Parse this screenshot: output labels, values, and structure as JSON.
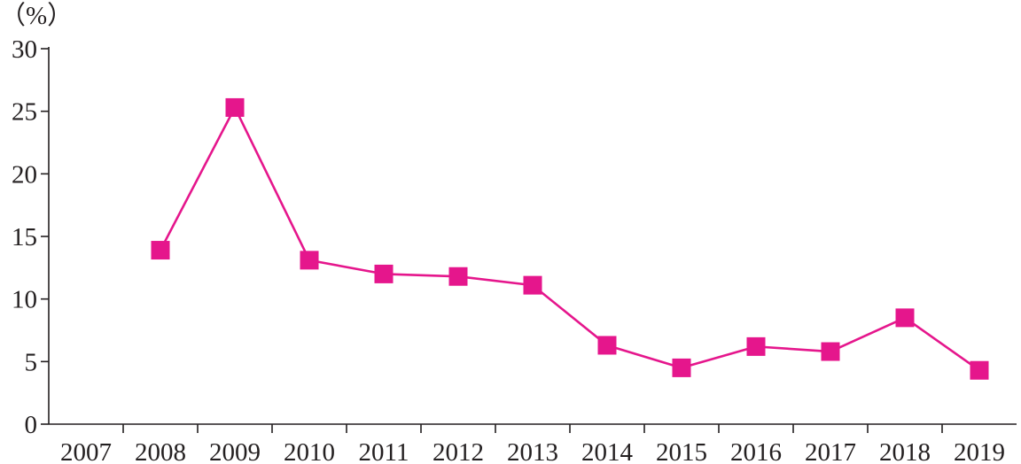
{
  "chart_data": {
    "type": "line",
    "ylabel": "（%）",
    "ylim": [
      0,
      30
    ],
    "yticks": [
      0,
      5,
      10,
      15,
      20,
      25,
      30
    ],
    "x_categories": [
      "2007",
      "2008",
      "2009",
      "2010",
      "2011",
      "2012",
      "2013",
      "2014",
      "2015",
      "2016",
      "2017",
      "2018",
      "2019"
    ],
    "series": [
      {
        "color": "#e5168c",
        "marker": "square",
        "points": [
          {
            "x": "2008",
            "y": 13.9
          },
          {
            "x": "2009",
            "y": 25.3
          },
          {
            "x": "2010",
            "y": 13.1
          },
          {
            "x": "2011",
            "y": 12.0
          },
          {
            "x": "2012",
            "y": 11.8
          },
          {
            "x": "2013",
            "y": 11.1
          },
          {
            "x": "2014",
            "y": 6.3
          },
          {
            "x": "2015",
            "y": 4.5
          },
          {
            "x": "2016",
            "y": 6.2
          },
          {
            "x": "2017",
            "y": 5.8
          },
          {
            "x": "2018",
            "y": 8.5
          },
          {
            "x": "2019",
            "y": 4.3
          }
        ]
      }
    ],
    "grid": false,
    "legend": "none"
  }
}
